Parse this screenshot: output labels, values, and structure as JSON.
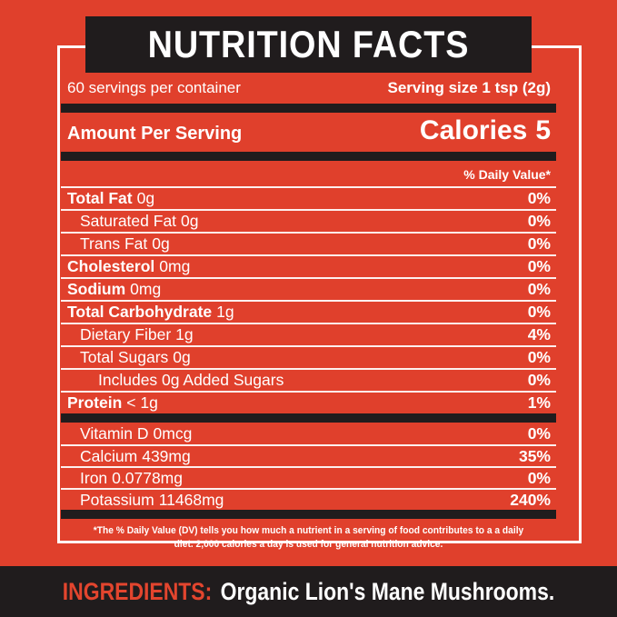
{
  "colors": {
    "background_red": "#E0402C",
    "panel_black": "#201C1D",
    "text_white": "#FFFFFF",
    "ingredients_red": "#E3452E"
  },
  "header": {
    "title": "NUTRITION FACTS"
  },
  "serving_info": {
    "servings_per_container": "60 servings per container",
    "serving_size": "Serving size 1 tsp (2g)"
  },
  "calories_section": {
    "amount_per_serving": "Amount Per Serving",
    "calories_label": "Calories",
    "calories_value": "5"
  },
  "daily_value_header": "% Daily Value*",
  "nutrients": [
    {
      "name": "Total Fat",
      "amount": "0g",
      "percent": "0%"
    },
    {
      "name": "Saturated Fat",
      "amount": "0g",
      "percent": "0%"
    },
    {
      "name": "Trans Fat",
      "amount": "0g",
      "percent": "0%"
    },
    {
      "name": "Cholesterol",
      "amount": "0mg",
      "percent": "0%"
    },
    {
      "name": "Sodium",
      "amount": "0mg",
      "percent": "0%"
    },
    {
      "name": "Total Carbohydrate",
      "amount": "1g",
      "percent": "0%"
    },
    {
      "name": "Dietary Fiber",
      "amount": "1g",
      "percent": "4%"
    },
    {
      "name": "Total Sugars",
      "amount": "0g",
      "percent": "0%"
    },
    {
      "name": "Includes 0g Added Sugars",
      "amount": "",
      "percent": "0%"
    },
    {
      "name": "Protein",
      "amount": "< 1g",
      "percent": "1%"
    }
  ],
  "micronutrients": [
    {
      "name": "Vitamin D",
      "amount": "0mcg",
      "percent": "0%"
    },
    {
      "name": "Calcium",
      "amount": "439mg",
      "percent": "35%"
    },
    {
      "name": "Iron",
      "amount": "0.0778mg",
      "percent": "0%"
    },
    {
      "name": "Potassium",
      "amount": "11468mg",
      "percent": "240%"
    }
  ],
  "footnote": {
    "line1": "*The % Daily Value (DV) tells you how much a nutrient in a serving of food contributes to a a daily",
    "line2": "diet. 2,000 calories a day is used for general nutrition advice."
  },
  "ingredients": {
    "label": "INGREDIENTS:",
    "value": "Organic Lion's Mane Mushrooms."
  }
}
